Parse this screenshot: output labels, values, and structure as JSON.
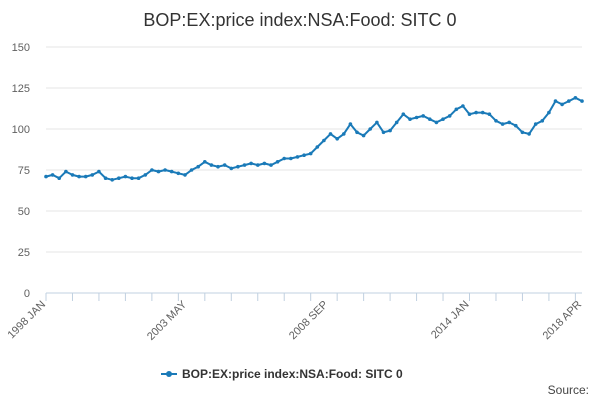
{
  "chart_data": {
    "type": "line",
    "title": "BOP:EX:price index:NSA:Food: SITC 0",
    "xlabel": "",
    "ylabel": "",
    "ylim": [
      0,
      150
    ],
    "yticks": [
      "0",
      "25",
      "50",
      "75",
      "100",
      "125",
      "150"
    ],
    "xtick_labels": [
      "1998 JAN",
      "2003 MAY",
      "2008 SEP",
      "2014 JAN",
      "2018 APR"
    ],
    "xtick_positions": [
      1998.0,
      2003.33,
      2008.67,
      2014.0,
      2018.25
    ],
    "xlim": [
      1998.0,
      2018.25
    ],
    "legend": "bottom-center",
    "grid": "horizontal",
    "series": [
      {
        "name": "BOP:EX:price index:NSA:Food: SITC 0",
        "color": "#1a7ab8",
        "x": [
          1998.0,
          1998.25,
          1998.5,
          1998.75,
          1999.0,
          1999.25,
          1999.5,
          1999.75,
          2000.0,
          2000.25,
          2000.5,
          2000.75,
          2001.0,
          2001.25,
          2001.5,
          2001.75,
          2002.0,
          2002.25,
          2002.5,
          2002.75,
          2003.0,
          2003.25,
          2003.5,
          2003.75,
          2004.0,
          2004.25,
          2004.5,
          2004.75,
          2005.0,
          2005.25,
          2005.5,
          2005.75,
          2006.0,
          2006.25,
          2006.5,
          2006.75,
          2007.0,
          2007.25,
          2007.5,
          2007.75,
          2008.0,
          2008.25,
          2008.5,
          2008.75,
          2009.0,
          2009.25,
          2009.5,
          2009.75,
          2010.0,
          2010.25,
          2010.5,
          2010.75,
          2011.0,
          2011.25,
          2011.5,
          2011.75,
          2012.0,
          2012.25,
          2012.5,
          2012.75,
          2013.0,
          2013.25,
          2013.5,
          2013.75,
          2014.0,
          2014.25,
          2014.5,
          2014.75,
          2015.0,
          2015.25,
          2015.5,
          2015.75,
          2016.0,
          2016.25,
          2016.5,
          2016.75,
          2017.0,
          2017.25,
          2017.5,
          2017.75,
          2018.0,
          2018.25
        ],
        "values": [
          71,
          72,
          70,
          74,
          72,
          71,
          71,
          72,
          74,
          70,
          69,
          70,
          71,
          70,
          70,
          72,
          75,
          74,
          75,
          74,
          73,
          72,
          75,
          77,
          80,
          78,
          77,
          78,
          76,
          77,
          78,
          79,
          78,
          79,
          78,
          80,
          82,
          82,
          83,
          84,
          85,
          89,
          93,
          97,
          94,
          97,
          103,
          98,
          96,
          100,
          104,
          98,
          99,
          104,
          109,
          106,
          107,
          108,
          106,
          104,
          106,
          108,
          112,
          114,
          109,
          110,
          110,
          109,
          105,
          103,
          104,
          102,
          98,
          97,
          103,
          105,
          110,
          117,
          115,
          117,
          119,
          117
        ]
      }
    ]
  },
  "source_label": "Source:"
}
